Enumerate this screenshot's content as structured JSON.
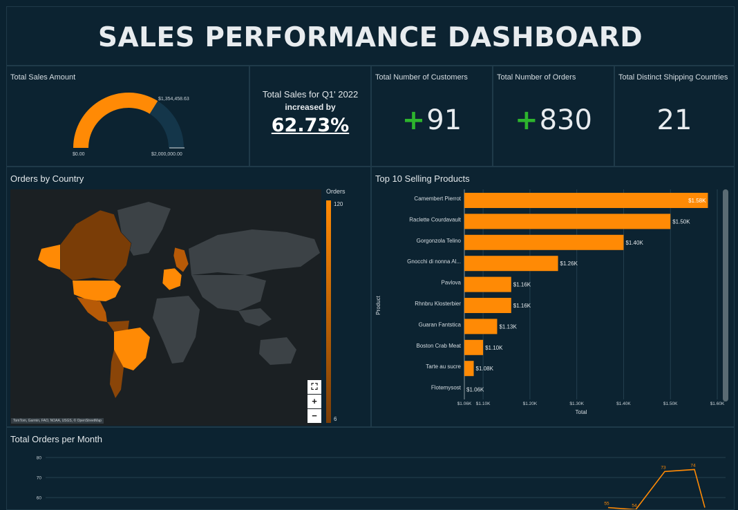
{
  "header": {
    "title": "SALES PERFORMANCE DASHBOARD"
  },
  "total_sales": {
    "label": "Total Sales Amount",
    "value_label": "$1,354,458.63",
    "min_label": "$0.00",
    "max_label": "$2,000,000.00",
    "value": 1354458.63,
    "max": 2000000,
    "fill_color": "#ff8a05",
    "track_color": "#14364a"
  },
  "q1_growth": {
    "line1": "Total Sales for Q1' 2022",
    "line2": "increased by",
    "pct": "62.73%"
  },
  "kpis": {
    "customers": {
      "label": "Total Number of Customers",
      "plus": "+",
      "value": "91"
    },
    "orders": {
      "label": "Total Number of Orders",
      "plus": "+",
      "value": "830"
    },
    "countries": {
      "label": "Total Distinct Shipping Countries",
      "value": "21"
    }
  },
  "map": {
    "title": "Orders by Country",
    "legend_title": "Orders",
    "legend_max": "120",
    "legend_min": "6",
    "attribution": "TomTom, Garmin, FAO, NOAA, USGS, © OpenStreetMap",
    "controls": {
      "fullscreen": "⛶",
      "zoom_in": "+",
      "zoom_out": "−"
    },
    "highlight_color": "#ff8a05"
  },
  "top_products": {
    "title": "Top 10 Selling Products",
    "chart_data": {
      "type": "bar",
      "orientation": "horizontal",
      "title": "Top 10 Selling Products",
      "xlabel": "Total",
      "ylabel": "Product",
      "categories": [
        "Camembert Pierrot",
        "Raclette Courdavault",
        "Gorgonzola Telino",
        "Gnocchi di nonna Al...",
        "Pavlova",
        "Rhnbru Klosterbier",
        "Guaran Fantstica",
        "Boston Crab Meat",
        "Tarte au sucre",
        "Flotemysost"
      ],
      "values": [
        1580,
        1500,
        1400,
        1260,
        1160,
        1160,
        1130,
        1100,
        1080,
        1060
      ],
      "data_labels": [
        "$1.58K",
        "$1.50K",
        "$1.40K",
        "$1.26K",
        "$1.16K",
        "$1.16K",
        "$1.13K",
        "$1.10K",
        "$1.08K",
        "$1.06K"
      ],
      "xlim": [
        1060,
        1600
      ],
      "xticks": [
        1060,
        1100,
        1200,
        1300,
        1400,
        1500,
        1600
      ],
      "xtick_labels": [
        "$1.06K",
        "$1.10K",
        "$1.20K",
        "$1.30K",
        "$1.40K",
        "$1.50K",
        "$1.60K"
      ],
      "bar_color": "#ff8a05"
    }
  },
  "monthly_orders": {
    "title": "Total Orders per Month",
    "chart_data": {
      "type": "line",
      "title": "Total Orders per Month",
      "yticks": [
        60,
        70,
        80
      ],
      "points": [
        {
          "label": "55",
          "y": 55
        },
        {
          "label": "54",
          "y": 54
        },
        {
          "label": "73",
          "y": 73
        },
        {
          "label": "74",
          "y": 74
        },
        {
          "label": "",
          "y": 55
        }
      ],
      "line_color": "#ff8a05"
    }
  }
}
